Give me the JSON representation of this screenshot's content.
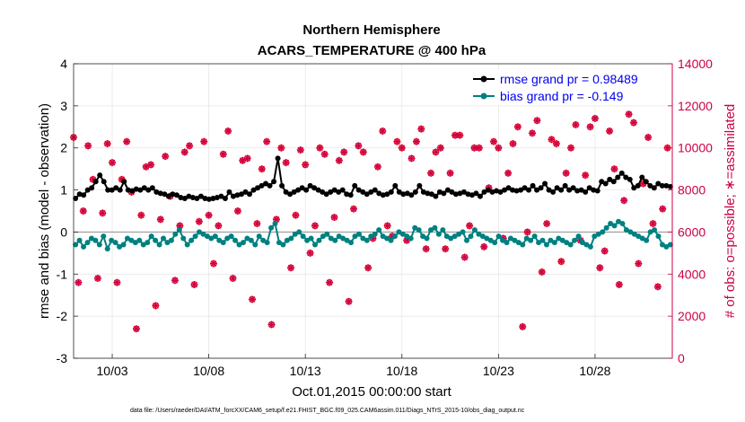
{
  "chart_data": {
    "type": "line",
    "title": "Northern Hemisphere",
    "subtitle": "ACARS_TEMPERATURE @ 400 hPa",
    "xlabel": "Oct.01,2015 00:00:00 start",
    "ylabel": "rmse and bias (model - observation)",
    "y2label": "# of obs: o=possible; ∗=assimilated",
    "xlim": [
      1,
      32
    ],
    "ylim": [
      -3,
      4
    ],
    "y2lim": [
      0,
      14000
    ],
    "xtick_values": [
      3,
      8,
      13,
      18,
      23,
      28
    ],
    "xtick_labels": [
      "10/03",
      "10/08",
      "10/13",
      "10/18",
      "10/23",
      "10/28"
    ],
    "ytick_labels": [
      "-3",
      "-2",
      "-1",
      "0",
      "1",
      "2",
      "3",
      "4"
    ],
    "y2tick_labels": [
      "0",
      "2000",
      "4000",
      "6000",
      "8000",
      "10000",
      "12000",
      "14000"
    ],
    "legend_position": "top-right",
    "grid": true,
    "series": [
      {
        "name": "rmse grand pr = 0.98489",
        "color": "#000000",
        "axis": "left",
        "marker": "filled-circle",
        "values": [
          0.8,
          0.9,
          0.88,
          1.0,
          1.05,
          1.2,
          1.35,
          1.2,
          1.0,
          1.0,
          1.05,
          1.0,
          1.2,
          1.0,
          0.98,
          1.02,
          1.0,
          1.05,
          1.0,
          1.05,
          0.95,
          0.92,
          0.9,
          0.85,
          0.9,
          0.88,
          0.82,
          0.8,
          0.85,
          0.82,
          0.8,
          0.85,
          0.8,
          0.78,
          0.8,
          0.82,
          0.85,
          0.8,
          0.95,
          0.85,
          0.88,
          0.9,
          0.95,
          0.9,
          1.0,
          1.05,
          1.1,
          1.15,
          1.1,
          1.2,
          1.75,
          1.1,
          0.95,
          0.9,
          0.95,
          1.0,
          1.05,
          1.0,
          1.1,
          1.05,
          1.0,
          0.95,
          0.9,
          0.95,
          1.0,
          0.95,
          1.0,
          0.9,
          0.88,
          1.1,
          1.0,
          0.95,
          0.9,
          0.95,
          1.0,
          0.92,
          0.88,
          0.9,
          0.95,
          1.1,
          0.95,
          0.9,
          0.92,
          0.88,
          0.95,
          1.1,
          0.95,
          0.92,
          0.9,
          0.85,
          0.95,
          0.92,
          1.0,
          0.95,
          0.9,
          0.92,
          0.95,
          0.9,
          0.88,
          0.92,
          0.85,
          0.95,
          1.0,
          0.95,
          0.98,
          0.95,
          1.0,
          1.05,
          1.0,
          0.98,
          1.0,
          1.05,
          1.0,
          1.1,
          1.0,
          1.05,
          1.15,
          1.0,
          0.95,
          1.05,
          1.0,
          1.1,
          1.0,
          1.05,
          0.98,
          1.0,
          0.95,
          1.05,
          1.0,
          0.98,
          1.2,
          1.15,
          1.25,
          1.2,
          1.3,
          1.4,
          1.3,
          1.25,
          1.05,
          1.1,
          1.3,
          1.2,
          1.1,
          1.05,
          1.15,
          1.1,
          1.1,
          1.08
        ]
      },
      {
        "name": "bias grand pr = -0.149",
        "color": "#008080",
        "axis": "left",
        "marker": "filled-circle",
        "values": [
          -0.3,
          -0.2,
          -0.35,
          -0.25,
          -0.15,
          -0.2,
          -0.3,
          -0.1,
          -0.4,
          -0.2,
          -0.25,
          -0.35,
          -0.3,
          -0.15,
          -0.2,
          -0.25,
          -0.2,
          -0.3,
          -0.25,
          -0.1,
          -0.2,
          -0.3,
          -0.15,
          -0.25,
          -0.2,
          -0.05,
          0.05,
          -0.15,
          -0.3,
          -0.2,
          -0.1,
          0.0,
          -0.05,
          -0.1,
          -0.15,
          -0.1,
          -0.2,
          -0.25,
          -0.15,
          -0.1,
          -0.2,
          -0.3,
          -0.25,
          -0.15,
          -0.2,
          -0.3,
          -0.1,
          -0.2,
          -0.25,
          0.1,
          0.2,
          -0.25,
          -0.3,
          -0.2,
          -0.15,
          -0.05,
          0.0,
          -0.1,
          -0.2,
          -0.15,
          -0.3,
          -0.2,
          -0.1,
          -0.05,
          -0.15,
          -0.2,
          -0.1,
          -0.15,
          -0.2,
          -0.25,
          -0.1,
          -0.05,
          -0.15,
          -0.2,
          -0.1,
          -0.05,
          0.05,
          -0.1,
          -0.15,
          -0.2,
          -0.1,
          0.0,
          -0.05,
          -0.1,
          -0.15,
          0.1,
          0.05,
          -0.1,
          -0.15,
          0.05,
          0.1,
          -0.05,
          0.05,
          -0.1,
          -0.15,
          -0.1,
          -0.05,
          0.0,
          -0.2,
          -0.1,
          0.05,
          -0.05,
          -0.1,
          -0.15,
          -0.2,
          -0.25,
          -0.1,
          -0.2,
          -0.25,
          -0.15,
          -0.2,
          -0.25,
          -0.3,
          -0.15,
          -0.2,
          -0.1,
          -0.25,
          -0.2,
          -0.3,
          -0.2,
          -0.25,
          -0.15,
          -0.2,
          -0.25,
          -0.3,
          -0.2,
          -0.1,
          -0.25,
          -0.3,
          -0.35,
          -0.1,
          -0.05,
          0.0,
          0.1,
          0.2,
          0.15,
          0.25,
          0.2,
          0.05,
          0.0,
          -0.05,
          -0.1,
          -0.15,
          -0.2,
          0.0,
          0.05,
          -0.1,
          -0.3,
          -0.35,
          -0.3
        ]
      },
      {
        "name": "obs possible",
        "color": "#ff0000",
        "axis": "right",
        "marker": "open-circle",
        "times": [
          1.0,
          1.25,
          1.5,
          1.75,
          2.0,
          2.25,
          2.5,
          2.75,
          3.0,
          3.25,
          3.5,
          3.75,
          4.0,
          4.25,
          4.5,
          4.75,
          5.0,
          5.25,
          5.5,
          5.75,
          6.0,
          6.25,
          6.5,
          6.75,
          7.0,
          7.25,
          7.5,
          7.75,
          8.0,
          8.25,
          8.5,
          8.75,
          9.0,
          9.25,
          9.5,
          9.75,
          10.0,
          10.25,
          10.5,
          10.75,
          11.0,
          11.25,
          11.5,
          11.75,
          12.0,
          12.25,
          12.5,
          12.75,
          13.0,
          13.25,
          13.5,
          13.75,
          14.0,
          14.25,
          14.5,
          14.75,
          15.0,
          15.25,
          15.5,
          15.75,
          16.0,
          16.25,
          16.5,
          16.75,
          17.0,
          17.25,
          17.5,
          17.75,
          18.0,
          18.25,
          18.5,
          18.75,
          19.0,
          19.25,
          19.5,
          19.75,
          20.0,
          20.25,
          20.5,
          20.75,
          21.0,
          21.25,
          21.5,
          21.75,
          22.0,
          22.25,
          22.5,
          22.75,
          23.0,
          23.25,
          23.5,
          23.75,
          24.0,
          24.25,
          24.5,
          24.75,
          25.0,
          25.25,
          25.5,
          25.75,
          26.0,
          26.25,
          26.5,
          26.75,
          27.0,
          27.25,
          27.5,
          27.75,
          28.0,
          28.25,
          28.5,
          28.75,
          29.0,
          29.25,
          29.5,
          29.75,
          30.0,
          30.25,
          30.5,
          30.75,
          31.0,
          31.25,
          31.5,
          31.75
        ],
        "values": [
          10500,
          3600,
          7000,
          10100,
          8500,
          3800,
          6900,
          10200,
          9300,
          3600,
          8500,
          10300,
          7900,
          1400,
          6800,
          9100,
          9200,
          2500,
          6600,
          9600,
          7700,
          3700,
          6300,
          9800,
          10100,
          3500,
          6500,
          10300,
          6800,
          4500,
          6300,
          9700,
          10800,
          3800,
          7000,
          9400,
          9500,
          2800,
          6400,
          9000,
          10300,
          1600,
          6600,
          10000,
          9300,
          4300,
          6800,
          9900,
          9200,
          5000,
          6300,
          10000,
          9700,
          3600,
          6700,
          9400,
          9800,
          2700,
          7100,
          10100,
          9800,
          4300,
          5700,
          9100,
          10800,
          6300,
          5800,
          10300,
          10000,
          5600,
          9500,
          10300,
          10900,
          5200,
          8800,
          9800,
          10000,
          5200,
          8800,
          10600,
          10600,
          4800,
          6300,
          10000,
          10000,
          5300,
          8100,
          10300,
          10000,
          5700,
          8800,
          10200,
          11000,
          1500,
          6000,
          10700,
          11300,
          4100,
          6400,
          10400,
          10200,
          4600,
          8800,
          10000,
          11100,
          5600,
          8700,
          11000,
          11400,
          4300,
          5100,
          10800,
          9000,
          3500,
          7500,
          11600,
          11200,
          4500,
          8300,
          10500,
          6400,
          3400,
          7100,
          10000
        ]
      },
      {
        "name": "obs assimilated",
        "color": "#cc0044",
        "axis": "right",
        "marker": "star",
        "times": [
          1.0,
          1.25,
          1.5,
          1.75,
          2.0,
          2.25,
          2.5,
          2.75,
          3.0,
          3.25,
          3.5,
          3.75,
          4.0,
          4.25,
          4.5,
          4.75,
          5.0,
          5.25,
          5.5,
          5.75,
          6.0,
          6.25,
          6.5,
          6.75,
          7.0,
          7.25,
          7.5,
          7.75,
          8.0,
          8.25,
          8.5,
          8.75,
          9.0,
          9.25,
          9.5,
          9.75,
          10.0,
          10.25,
          10.5,
          10.75,
          11.0,
          11.25,
          11.5,
          11.75,
          12.0,
          12.25,
          12.5,
          12.75,
          13.0,
          13.25,
          13.5,
          13.75,
          14.0,
          14.25,
          14.5,
          14.75,
          15.0,
          15.25,
          15.5,
          15.75,
          16.0,
          16.25,
          16.5,
          16.75,
          17.0,
          17.25,
          17.5,
          17.75,
          18.0,
          18.25,
          18.5,
          18.75,
          19.0,
          19.25,
          19.5,
          19.75,
          20.0,
          20.25,
          20.5,
          20.75,
          21.0,
          21.25,
          21.5,
          21.75,
          22.0,
          22.25,
          22.5,
          22.75,
          23.0,
          23.25,
          23.5,
          23.75,
          24.0,
          24.25,
          24.5,
          24.75,
          25.0,
          25.25,
          25.5,
          25.75,
          26.0,
          26.25,
          26.5,
          26.75,
          27.0,
          27.25,
          27.5,
          27.75,
          28.0,
          28.25,
          28.5,
          28.75,
          29.0,
          29.25,
          29.5,
          29.75,
          30.0,
          30.25,
          30.5,
          30.75,
          31.0,
          31.25,
          31.5,
          31.75
        ],
        "values": [
          10500,
          3600,
          7000,
          10100,
          8500,
          3800,
          6900,
          10200,
          9300,
          3600,
          8500,
          10300,
          7900,
          1400,
          6800,
          9100,
          9200,
          2500,
          6600,
          9600,
          7700,
          3700,
          6300,
          9800,
          10100,
          3500,
          6500,
          10300,
          6800,
          4500,
          6300,
          9700,
          10800,
          3800,
          7000,
          9400,
          9500,
          2800,
          6400,
          9000,
          10300,
          1600,
          6600,
          10000,
          9300,
          4300,
          6800,
          9900,
          9200,
          5000,
          6300,
          10000,
          9700,
          3600,
          6700,
          9400,
          9800,
          2700,
          7100,
          10100,
          9800,
          4300,
          5700,
          9100,
          10800,
          6300,
          5800,
          10300,
          10000,
          5600,
          9500,
          10300,
          10900,
          5200,
          8800,
          9800,
          10000,
          5200,
          8800,
          10600,
          10600,
          4800,
          6300,
          10000,
          10000,
          5300,
          8100,
          10300,
          10000,
          5700,
          8800,
          10200,
          11000,
          1500,
          6000,
          10700,
          11300,
          4100,
          6400,
          10400,
          10200,
          4600,
          8800,
          10000,
          11100,
          5600,
          8700,
          11000,
          11400,
          4300,
          5100,
          10800,
          9000,
          3500,
          7500,
          11600,
          11200,
          4500,
          8300,
          10500,
          6400,
          3400,
          7100,
          10000
        ]
      }
    ]
  },
  "footer": "data file: /Users/raeder/DAI/ATM_forcXX/CAM6_setup/f.e21.FHIST_BGC.f09_025.CAM6assim.011/Diags_NTrS_2015-10/obs_diag_output.nc"
}
